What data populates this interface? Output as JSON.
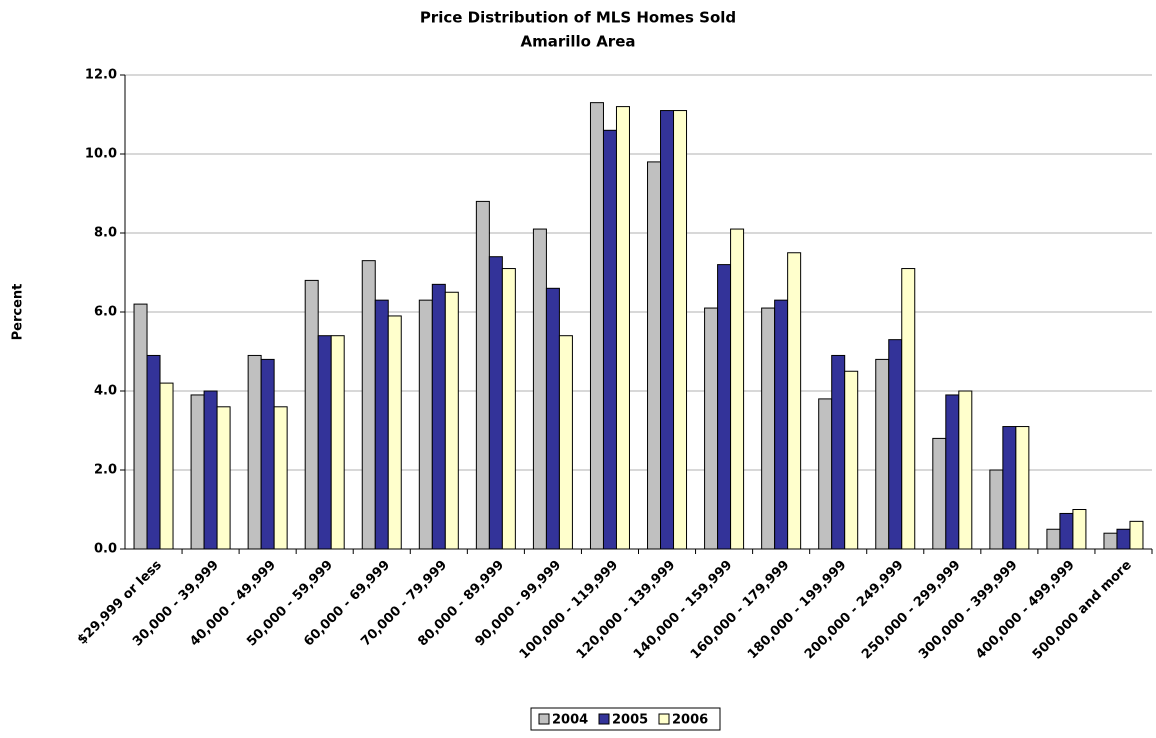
{
  "chart_data": {
    "type": "bar",
    "title": "Price Distribution of MLS Homes Sold",
    "subtitle": "Amarillo Area",
    "y_label": "Percent",
    "categories": [
      "$29,999 or less",
      "30,000 - 39,999",
      "40,000 - 49,999",
      "50,000 - 59,999",
      "60,000 - 69,999",
      "70,000 - 79,999",
      "80,000 - 89,999",
      "90,000 - 99,999",
      "100,000 - 119,999",
      "120,000 - 139,999",
      "140,000 - 159,999",
      "160,000 - 179,999",
      "180,000 - 199,999",
      "200,000 - 249,999",
      "250,000 - 299,999",
      "300,000 - 399,999",
      "400,000 - 499,999",
      "500,000 and more"
    ],
    "series": [
      {
        "name": "2004",
        "color": "#c0c0c0",
        "values": [
          6.2,
          3.9,
          4.9,
          6.8,
          7.3,
          6.3,
          8.8,
          8.1,
          11.3,
          9.8,
          6.1,
          6.1,
          3.8,
          4.8,
          2.8,
          2.0,
          0.5,
          0.4
        ]
      },
      {
        "name": "2005",
        "color": "#333399",
        "values": [
          4.9,
          4.0,
          4.8,
          5.4,
          6.3,
          6.7,
          7.4,
          6.6,
          10.6,
          11.1,
          7.2,
          6.3,
          4.9,
          5.3,
          3.9,
          3.1,
          0.9,
          0.5
        ]
      },
      {
        "name": "2006",
        "color": "#ffffcc",
        "values": [
          4.2,
          3.6,
          3.6,
          5.4,
          5.9,
          6.5,
          7.1,
          5.4,
          11.2,
          11.1,
          8.1,
          7.5,
          4.5,
          7.1,
          4.0,
          3.1,
          1.0,
          0.7
        ]
      }
    ],
    "ylim": [
      0,
      12
    ],
    "yticks": [
      {
        "value": 0,
        "label": "0.0"
      },
      {
        "value": 2,
        "label": "2.0"
      },
      {
        "value": 4,
        "label": "4.0"
      },
      {
        "value": 6,
        "label": "6.0"
      },
      {
        "value": 8,
        "label": "8.0"
      },
      {
        "value": 10,
        "label": "10.0"
      },
      {
        "value": 12,
        "label": "12.0"
      }
    ],
    "grid": true,
    "legend": "bottom"
  }
}
